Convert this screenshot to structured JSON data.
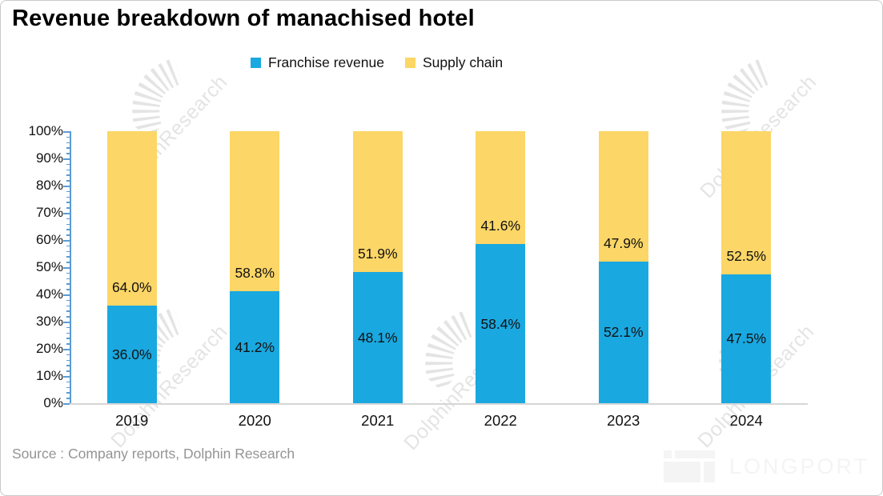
{
  "title": "Revenue breakdown of manachised hotel",
  "legend": [
    {
      "label": "Franchise revenue",
      "color": "#1AA8E0"
    },
    {
      "label": "Supply chain",
      "color": "#FCD666"
    }
  ],
  "chart_data": {
    "type": "bar",
    "stacked": true,
    "title": "Revenue breakdown of manachised hotel",
    "categories": [
      "2019",
      "2020",
      "2021",
      "2022",
      "2023",
      "2024"
    ],
    "series": [
      {
        "name": "Franchise revenue",
        "color": "#1AA8E0",
        "values": [
          36.0,
          41.2,
          48.1,
          58.4,
          52.1,
          47.5
        ],
        "labels": [
          "36.0%",
          "41.2%",
          "48.1%",
          "58.4%",
          "52.1%",
          "47.5%"
        ]
      },
      {
        "name": "Supply chain",
        "color": "#FCD666",
        "values": [
          64.0,
          58.8,
          51.9,
          41.6,
          47.9,
          52.5
        ],
        "labels": [
          "64.0%",
          "58.8%",
          "51.9%",
          "41.6%",
          "47.9%",
          "52.5%"
        ]
      }
    ],
    "y_axis": {
      "min": 0,
      "max": 100,
      "major_tick_step": 10,
      "minor_tick_step": 2,
      "tick_labels": [
        "0%",
        "10%",
        "20%",
        "30%",
        "40%",
        "50%",
        "60%",
        "70%",
        "80%",
        "90%",
        "100%"
      ]
    },
    "xlabel": "",
    "ylabel": "",
    "grid": false,
    "legend_position": "top"
  },
  "source": "Source : Company reports, Dolphin Research",
  "watermark": {
    "text": "DolphinResearch"
  },
  "brand": {
    "logo_text": "LONGPORT"
  },
  "colors": {
    "y_axis": "#5B9BD5",
    "x_axis": "#D6D6D6",
    "source_text": "#949494",
    "watermark": "#E4E4E4",
    "logo": "#F4F4F4"
  }
}
